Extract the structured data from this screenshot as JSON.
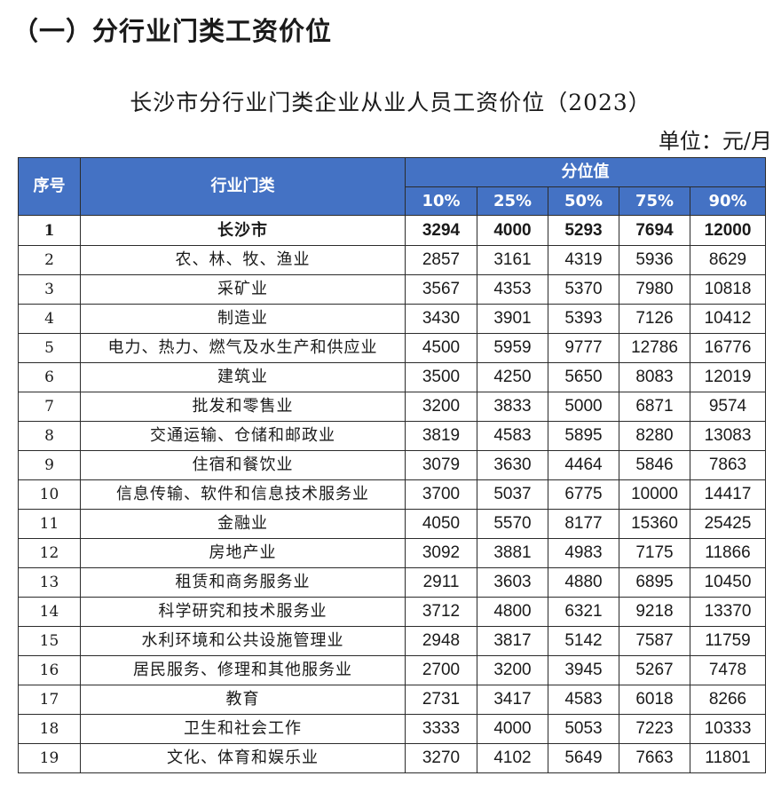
{
  "section_heading": "（一）分行业门类工资价位",
  "table_caption": "长沙市分行业门类企业从业人员工资价位（2023）",
  "unit_label": "单位：元/月",
  "header": {
    "index": "序号",
    "industry": "行业门类",
    "group": "分位值",
    "percentiles": [
      "10%",
      "25%",
      "50%",
      "75%",
      "90%"
    ]
  },
  "rows": [
    {
      "no": "1",
      "industry": "长沙市",
      "values": [
        "3294",
        "4000",
        "5293",
        "7694",
        "12000"
      ]
    },
    {
      "no": "2",
      "industry": "农、林、牧、渔业",
      "values": [
        "2857",
        "3161",
        "4319",
        "5936",
        "8629"
      ]
    },
    {
      "no": "3",
      "industry": "采矿业",
      "values": [
        "3567",
        "4353",
        "5370",
        "7980",
        "10818"
      ]
    },
    {
      "no": "4",
      "industry": "制造业",
      "values": [
        "3430",
        "3901",
        "5393",
        "7126",
        "10412"
      ]
    },
    {
      "no": "5",
      "industry": "电力、热力、燃气及水生产和供应业",
      "values": [
        "4500",
        "5959",
        "9777",
        "12786",
        "16776"
      ]
    },
    {
      "no": "6",
      "industry": "建筑业",
      "values": [
        "3500",
        "4250",
        "5650",
        "8083",
        "12019"
      ]
    },
    {
      "no": "7",
      "industry": "批发和零售业",
      "values": [
        "3200",
        "3833",
        "5000",
        "6871",
        "9574"
      ]
    },
    {
      "no": "8",
      "industry": "交通运输、仓储和邮政业",
      "values": [
        "3819",
        "4583",
        "5895",
        "8280",
        "13083"
      ]
    },
    {
      "no": "9",
      "industry": "住宿和餐饮业",
      "values": [
        "3079",
        "3630",
        "4464",
        "5846",
        "7863"
      ]
    },
    {
      "no": "10",
      "industry": "信息传输、软件和信息技术服务业",
      "values": [
        "3700",
        "5037",
        "6775",
        "10000",
        "14417"
      ]
    },
    {
      "no": "11",
      "industry": "金融业",
      "values": [
        "4050",
        "5570",
        "8177",
        "15360",
        "25425"
      ]
    },
    {
      "no": "12",
      "industry": "房地产业",
      "values": [
        "3092",
        "3881",
        "4983",
        "7175",
        "11866"
      ]
    },
    {
      "no": "13",
      "industry": "租赁和商务服务业",
      "values": [
        "2911",
        "3603",
        "4880",
        "6895",
        "10450"
      ]
    },
    {
      "no": "14",
      "industry": "科学研究和技术服务业",
      "values": [
        "3712",
        "4800",
        "6321",
        "9218",
        "13370"
      ]
    },
    {
      "no": "15",
      "industry": "水利环境和公共设施管理业",
      "values": [
        "2948",
        "3817",
        "5142",
        "7587",
        "11759"
      ]
    },
    {
      "no": "16",
      "industry": "居民服务、修理和其他服务业",
      "values": [
        "2700",
        "3200",
        "3945",
        "5267",
        "7478"
      ]
    },
    {
      "no": "17",
      "industry": "教育",
      "values": [
        "2731",
        "3417",
        "4583",
        "6018",
        "8266"
      ]
    },
    {
      "no": "18",
      "industry": "卫生和社会工作",
      "values": [
        "3333",
        "4000",
        "5053",
        "7223",
        "10333"
      ]
    },
    {
      "no": "19",
      "industry": "文化、体育和娱乐业",
      "values": [
        "3270",
        "4102",
        "5649",
        "7663",
        "11801"
      ]
    }
  ]
}
